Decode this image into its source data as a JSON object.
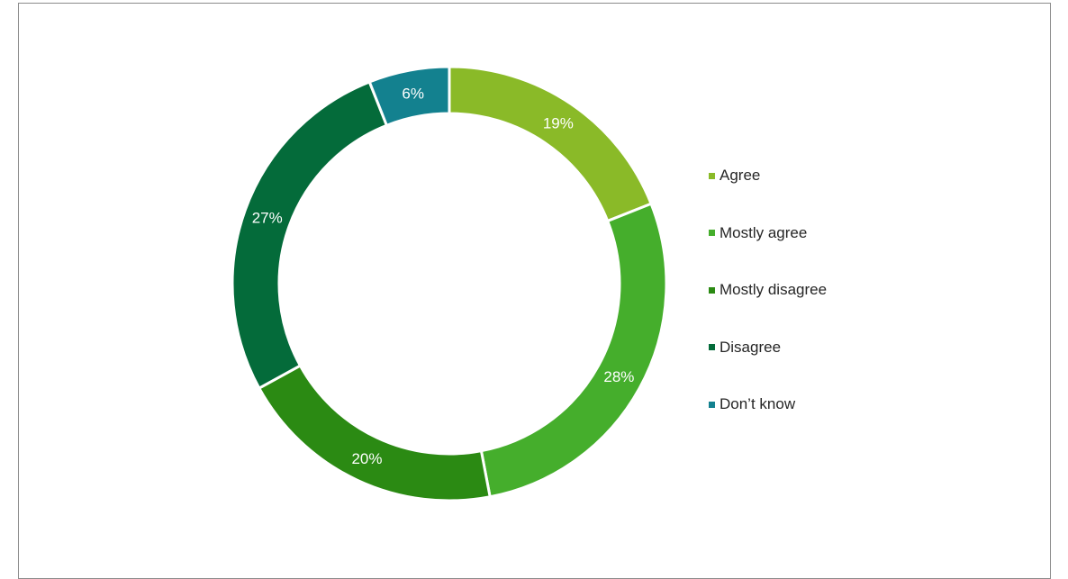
{
  "chart_data": {
    "type": "pie",
    "donut": true,
    "title": "",
    "categories": [
      "Agree",
      "Mostly agree",
      "Mostly disagree",
      "Disagree",
      "Don’t know"
    ],
    "values": [
      19,
      28,
      20,
      27,
      6
    ],
    "value_labels": [
      "19%",
      "28%",
      "20%",
      "27%",
      "6%"
    ],
    "colors": [
      "#8aba28",
      "#45ae2c",
      "#2b8a13",
      "#046b3a",
      "#13818f"
    ],
    "legend_position": "right"
  }
}
